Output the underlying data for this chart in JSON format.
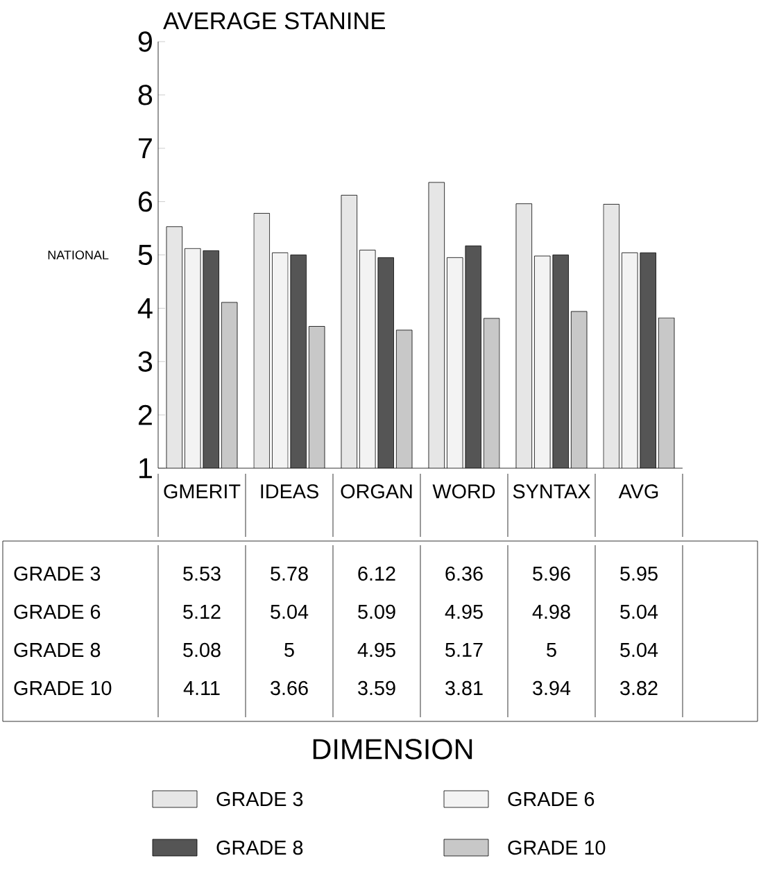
{
  "chart_data": {
    "type": "bar",
    "ylabel": "AVERAGE STANINE",
    "categories": [
      "GMERIT",
      "IDEAS",
      "ORGAN",
      "WORD",
      "SYNTAX",
      "AVG"
    ],
    "series": [
      {
        "name": "GRADE 3",
        "color": "#e6e6e6",
        "values": [
          5.53,
          5.78,
          6.12,
          6.36,
          5.96,
          5.95
        ]
      },
      {
        "name": "GRADE 6",
        "color": "#f3f3f3",
        "values": [
          5.12,
          5.04,
          5.09,
          4.95,
          4.98,
          5.04
        ]
      },
      {
        "name": "GRADE 8",
        "color": "#555555",
        "values": [
          5.08,
          5,
          4.95,
          5.17,
          5,
          5.04
        ]
      },
      {
        "name": "GRADE 10",
        "color": "#c8c8c8",
        "values": [
          4.11,
          3.66,
          3.59,
          3.81,
          3.94,
          3.82
        ]
      }
    ],
    "ylim": [
      1,
      9
    ],
    "yticks": [
      1,
      2,
      3,
      4,
      5,
      6,
      7,
      8,
      9
    ],
    "annotations": [
      "NATIONAL",
      "DIMENSION"
    ],
    "data_labels": true,
    "legend": "bottom"
  }
}
